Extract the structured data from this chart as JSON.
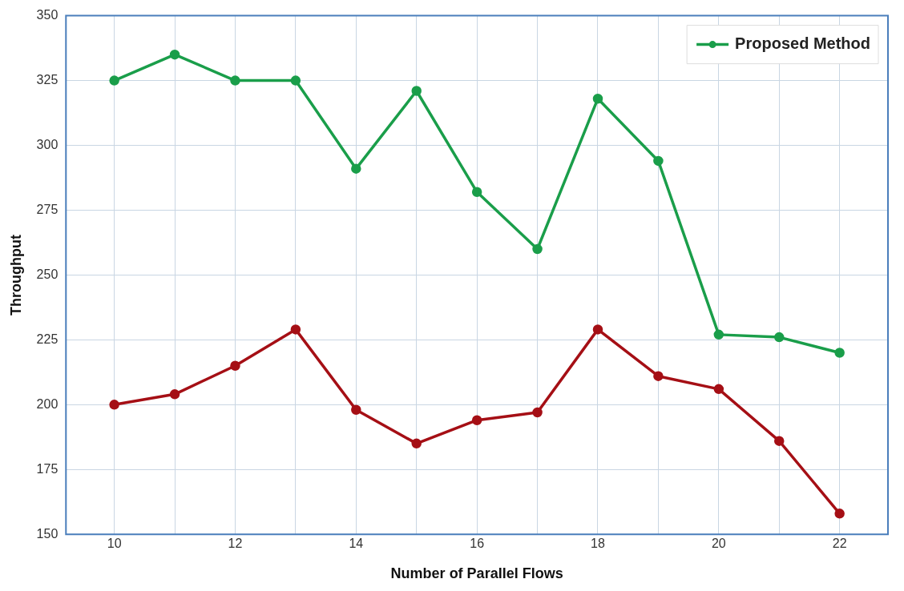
{
  "chart_data": {
    "type": "line",
    "xlabel": "Number of Parallel Flows",
    "ylabel": "Throughput",
    "x": [
      10,
      11,
      12,
      13,
      14,
      15,
      16,
      17,
      18,
      19,
      20,
      21,
      22
    ],
    "series": [
      {
        "name": "Proposed Method",
        "color": "#1a9e4a",
        "values": [
          325,
          335,
          325,
          325,
          291,
          321,
          282,
          260,
          318,
          294,
          227,
          226,
          220
        ]
      },
      {
        "color": "#a50f15",
        "values": [
          200,
          204,
          215,
          229,
          198,
          185,
          194,
          197,
          229,
          211,
          206,
          186,
          158
        ]
      }
    ],
    "xlim": [
      9.2,
      22.8
    ],
    "xticks": [
      10,
      {
        "value": 11,
        "label": null
      },
      12,
      {
        "value": 13,
        "label": null
      },
      14,
      {
        "value": 15,
        "label": null
      },
      16,
      {
        "value": 17,
        "label": null
      },
      18,
      {
        "value": 19,
        "label": null
      },
      20,
      {
        "value": 21,
        "label": null
      },
      22
    ],
    "ylim": [
      150,
      350
    ],
    "yticks": [
      150,
      175,
      200,
      225,
      250,
      275,
      300,
      325,
      350
    ],
    "grid": true,
    "legend": "top right",
    "marker": "circle",
    "line_style": "solid"
  }
}
